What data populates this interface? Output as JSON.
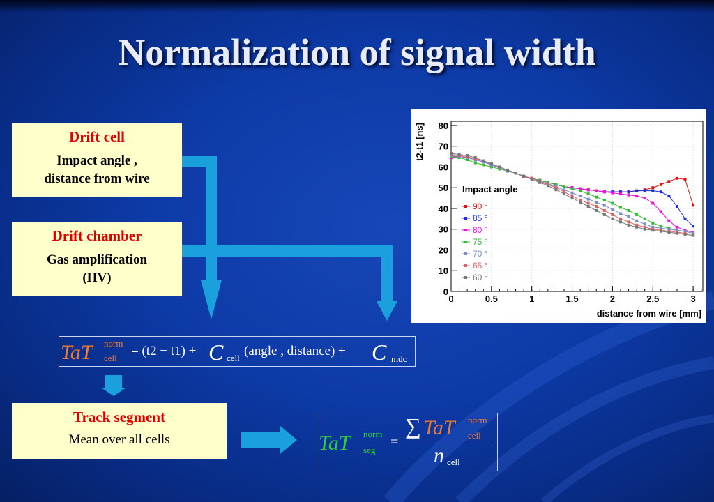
{
  "slide": {
    "title": "Normalization of signal width"
  },
  "boxes": {
    "drift_cell": {
      "head": "Drift cell",
      "line1": "Impact angle  ,",
      "line2": "distance from wire"
    },
    "drift_chamber": {
      "head": "Drift chamber",
      "line1": "Gas amplification",
      "line2": "(HV)"
    },
    "track_segment": {
      "head": "Track segment",
      "line1": "Mean over all cells"
    }
  },
  "formula1": {
    "lhs": "TaT",
    "lhs_sup": "norm",
    "lhs_sub": "cell",
    "eq": "= (t2 − t1) +",
    "c1": "C",
    "c1_sub": "cell",
    "args": "(angle , distance) +",
    "c2": "C",
    "c2_sub": "mdc"
  },
  "formula2": {
    "lhs": "TaT",
    "lhs_sup": "norm",
    "lhs_sub": "seg",
    "eq": "=",
    "sum": "∑",
    "num": "TaT",
    "num_sup": "norm",
    "num_sub": "cell",
    "den": "n",
    "den_sub": "cell"
  },
  "chart_data": {
    "type": "line",
    "title": "",
    "xlabel": "distance from wire [mm]",
    "ylabel": "t2-t1 [ns]",
    "xlim": [
      0,
      3.12
    ],
    "ylim": [
      0,
      82
    ],
    "x_ticks": [
      "0",
      "0.5",
      "1",
      "1.5",
      "2",
      "2.5",
      "3"
    ],
    "y_ticks": [
      "0",
      "10",
      "20",
      "30",
      "40",
      "50",
      "60",
      "70",
      "80"
    ],
    "legend_title": "Impact angle",
    "legend_position": "left-middle",
    "x": [
      0.0,
      0.1,
      0.2,
      0.3,
      0.4,
      0.5,
      0.6,
      0.7,
      0.8,
      0.9,
      1.0,
      1.1,
      1.2,
      1.3,
      1.4,
      1.5,
      1.6,
      1.7,
      1.8,
      1.9,
      2.0,
      2.1,
      2.2,
      2.3,
      2.4,
      2.5,
      2.6,
      2.7,
      2.8,
      2.9,
      3.0
    ],
    "series": [
      {
        "name": "90 °",
        "color": "#dd1111",
        "values": [
          65,
          65,
          64.5,
          63.5,
          62.5,
          61,
          59.5,
          58,
          57,
          55.5,
          54.5,
          53.5,
          52.5,
          51.5,
          50.5,
          50,
          49.5,
          49,
          48.5,
          48,
          48,
          48,
          48,
          48.5,
          49,
          50,
          51.5,
          53,
          54.5,
          54,
          41.5
        ]
      },
      {
        "name": "85 °",
        "color": "#1a2ee0",
        "values": [
          64.5,
          65,
          64.5,
          63.5,
          62.5,
          61,
          59.5,
          58,
          57,
          55.5,
          54.5,
          53.5,
          52.5,
          51.5,
          50.5,
          50,
          49.5,
          49,
          48.5,
          48,
          48,
          48,
          48,
          48.5,
          48.5,
          48.5,
          48,
          46,
          41,
          35,
          31.5
        ]
      },
      {
        "name": "80 °",
        "color": "#ee11dd",
        "values": [
          64.5,
          65,
          64.5,
          63.5,
          62.5,
          61,
          59.5,
          58,
          57,
          55.5,
          54.5,
          53.5,
          52.5,
          51.5,
          50.5,
          50,
          49.5,
          49,
          48.5,
          48,
          47.5,
          47,
          46.5,
          46,
          45,
          42.5,
          38.5,
          34,
          31,
          29.5,
          28.5
        ]
      },
      {
        "name": "75 °",
        "color": "#33bb33",
        "values": [
          65,
          64.5,
          63.5,
          62,
          61,
          60,
          59,
          58,
          57,
          55.5,
          54.5,
          53.5,
          52.5,
          51.5,
          50.5,
          49.5,
          48.5,
          47,
          45.5,
          44,
          42.5,
          40.5,
          39,
          37,
          35,
          33,
          31.5,
          30.5,
          29.5,
          29,
          28
        ]
      },
      {
        "name": "70 °",
        "color": "#7a8ccc",
        "values": [
          65.5,
          65,
          64.5,
          63.5,
          62.5,
          61,
          59.5,
          58,
          57,
          55.5,
          54.5,
          53,
          52,
          50.5,
          49,
          47.5,
          46,
          44.5,
          43,
          41.5,
          39.5,
          37.5,
          36,
          34,
          32.5,
          31,
          30.5,
          30,
          29.5,
          29,
          28
        ]
      },
      {
        "name": "65 °",
        "color": "#e06060",
        "values": [
          66,
          65.5,
          65,
          64,
          63,
          61.5,
          60,
          58.5,
          57,
          55.5,
          54.5,
          53,
          51.5,
          50,
          48,
          46,
          44,
          42.5,
          41,
          39,
          37,
          35,
          33.5,
          32,
          31,
          30,
          29.5,
          29,
          28.5,
          28,
          27.5
        ]
      },
      {
        "name": "60 °",
        "color": "#777777",
        "values": [
          66.5,
          66,
          65.5,
          64.5,
          63,
          61.5,
          60,
          58.5,
          57,
          55.5,
          54,
          52.5,
          51,
          49,
          47,
          45,
          43,
          41,
          39,
          37,
          35,
          33.5,
          32,
          31,
          30,
          29.5,
          29,
          28.5,
          28,
          27.5,
          27
        ]
      }
    ]
  }
}
